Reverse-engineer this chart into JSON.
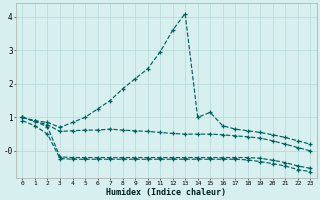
{
  "xlabel": "Humidex (Indice chaleur)",
  "x": [
    0,
    1,
    2,
    3,
    4,
    5,
    6,
    7,
    8,
    9,
    10,
    11,
    12,
    13,
    14,
    15,
    16,
    17,
    18,
    19,
    20,
    21,
    22,
    23
  ],
  "line1_y": [
    1.0,
    0.9,
    0.85,
    0.7,
    0.85,
    1.0,
    1.25,
    1.5,
    1.85,
    2.15,
    2.45,
    2.95,
    3.6,
    4.1,
    1.0,
    1.15,
    0.75,
    0.65,
    0.6,
    0.55,
    0.48,
    0.4,
    0.3,
    0.2
  ],
  "line2_y": [
    1.0,
    0.88,
    0.78,
    0.58,
    0.6,
    0.62,
    0.62,
    0.65,
    0.62,
    0.6,
    0.58,
    0.55,
    0.52,
    0.5,
    0.5,
    0.5,
    0.48,
    0.45,
    0.42,
    0.38,
    0.3,
    0.2,
    0.1,
    0.0
  ],
  "line3_y": [
    1.0,
    0.88,
    0.72,
    -0.18,
    -0.2,
    -0.2,
    -0.2,
    -0.2,
    -0.2,
    -0.2,
    -0.2,
    -0.2,
    -0.2,
    -0.2,
    -0.2,
    -0.2,
    -0.2,
    -0.2,
    -0.2,
    -0.22,
    -0.28,
    -0.35,
    -0.45,
    -0.52
  ],
  "line4_y": [
    0.9,
    0.75,
    0.5,
    -0.23,
    -0.25,
    -0.25,
    -0.25,
    -0.25,
    -0.25,
    -0.25,
    -0.25,
    -0.25,
    -0.25,
    -0.25,
    -0.25,
    -0.25,
    -0.25,
    -0.25,
    -0.27,
    -0.32,
    -0.38,
    -0.45,
    -0.56,
    -0.62
  ],
  "bg_color": "#d7f0ef",
  "line_color": "#006060",
  "grid_color": "#b5d9d7",
  "ylim": [
    -0.8,
    4.4
  ],
  "xlim": [
    -0.5,
    23.5
  ],
  "yticks": [
    0,
    1,
    2,
    3,
    4
  ],
  "ytick_labels": [
    "-0",
    "1",
    "2",
    "3",
    "4"
  ]
}
